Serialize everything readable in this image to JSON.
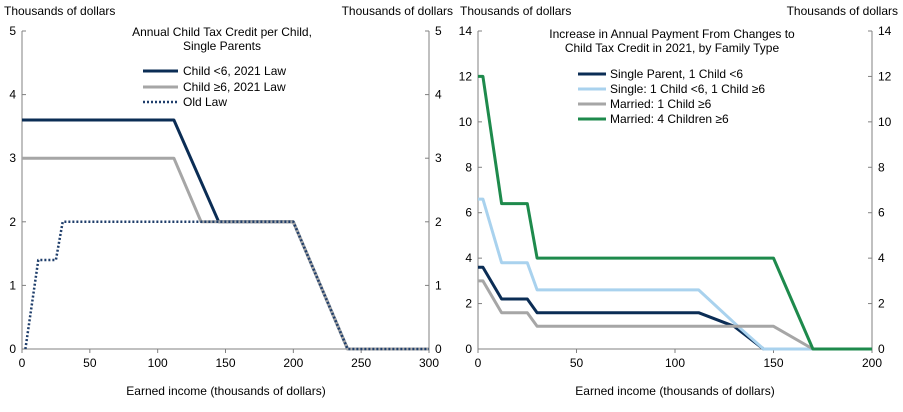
{
  "chart_data": [
    {
      "type": "line",
      "title": "Annual Child Tax Credit per Child,",
      "subtitle": "Single Parents",
      "unit_left": "Thousands  of dollars",
      "unit_right": "Thousands  of dollars",
      "xlabel": "Earned income (thousands  of dollars)",
      "xlim": [
        0,
        300
      ],
      "ylim": [
        0,
        5
      ],
      "xticks": [
        0,
        50,
        100,
        150,
        200,
        250,
        300
      ],
      "yticks": [
        0,
        1,
        2,
        3,
        4,
        5
      ],
      "legend_position": "top-center",
      "series": [
        {
          "name": "Child <6, 2021 Law",
          "color": "#0b2d55",
          "style": "solid",
          "x": [
            0,
            112,
            145,
            200,
            240,
            300
          ],
          "y": [
            3.6,
            3.6,
            2.0,
            2.0,
            0,
            0
          ]
        },
        {
          "name": "Child ≥6, 2021 Law",
          "color": "#a6a6a6",
          "style": "solid",
          "x": [
            0,
            112,
            132,
            200,
            240,
            300
          ],
          "y": [
            3.0,
            3.0,
            2.0,
            2.0,
            0,
            0
          ]
        },
        {
          "name": "Old Law",
          "color": "#1f3e6b",
          "style": "dotted",
          "x": [
            2.5,
            12,
            25,
            30,
            200,
            240,
            300
          ],
          "y": [
            0,
            1.4,
            1.4,
            2.0,
            2.0,
            0,
            0
          ]
        }
      ]
    },
    {
      "type": "line",
      "title": "Increase in Annual Payment From Changes to",
      "subtitle": "Child Tax Credit in 2021, by Family Type",
      "unit_left": "Thousands  of dollars",
      "unit_right": "Thousands  of dollars",
      "xlabel": "Earned income (thousands  of dollars)",
      "xlim": [
        0,
        200
      ],
      "ylim": [
        0,
        14
      ],
      "xticks": [
        0,
        50,
        100,
        150,
        200
      ],
      "yticks": [
        0,
        2,
        4,
        6,
        8,
        10,
        12,
        14
      ],
      "legend_position": "top-center",
      "series": [
        {
          "name": "Single Parent, 1 Child <6",
          "color": "#0b2d55",
          "style": "solid",
          "x": [
            0,
            2.5,
            12,
            25,
            30,
            112,
            130,
            145,
            200
          ],
          "y": [
            3.6,
            3.6,
            2.2,
            2.2,
            1.6,
            1.6,
            1.0,
            0,
            0
          ]
        },
        {
          "name": "Single: 1 Child <6, 1 Child ≥6",
          "color": "#a9d2ee",
          "style": "solid",
          "x": [
            0,
            2.5,
            12,
            25,
            30,
            112,
            132,
            145,
            200
          ],
          "y": [
            6.6,
            6.6,
            3.8,
            3.8,
            2.6,
            2.6,
            1.0,
            0,
            0
          ]
        },
        {
          "name": "Married:  1 Child ≥6",
          "color": "#a6a6a6",
          "style": "solid",
          "x": [
            0,
            2.5,
            12,
            25,
            30,
            150,
            170,
            200
          ],
          "y": [
            3.0,
            3.0,
            1.6,
            1.6,
            1.0,
            1.0,
            0,
            0
          ]
        },
        {
          "name": "Married:  4 Children ≥6",
          "color": "#1e8a4c",
          "style": "solid",
          "x": [
            0,
            2.5,
            12,
            25,
            30,
            150,
            170,
            200
          ],
          "y": [
            12.0,
            12.0,
            6.4,
            6.4,
            4.0,
            4.0,
            0,
            0
          ]
        }
      ]
    }
  ]
}
